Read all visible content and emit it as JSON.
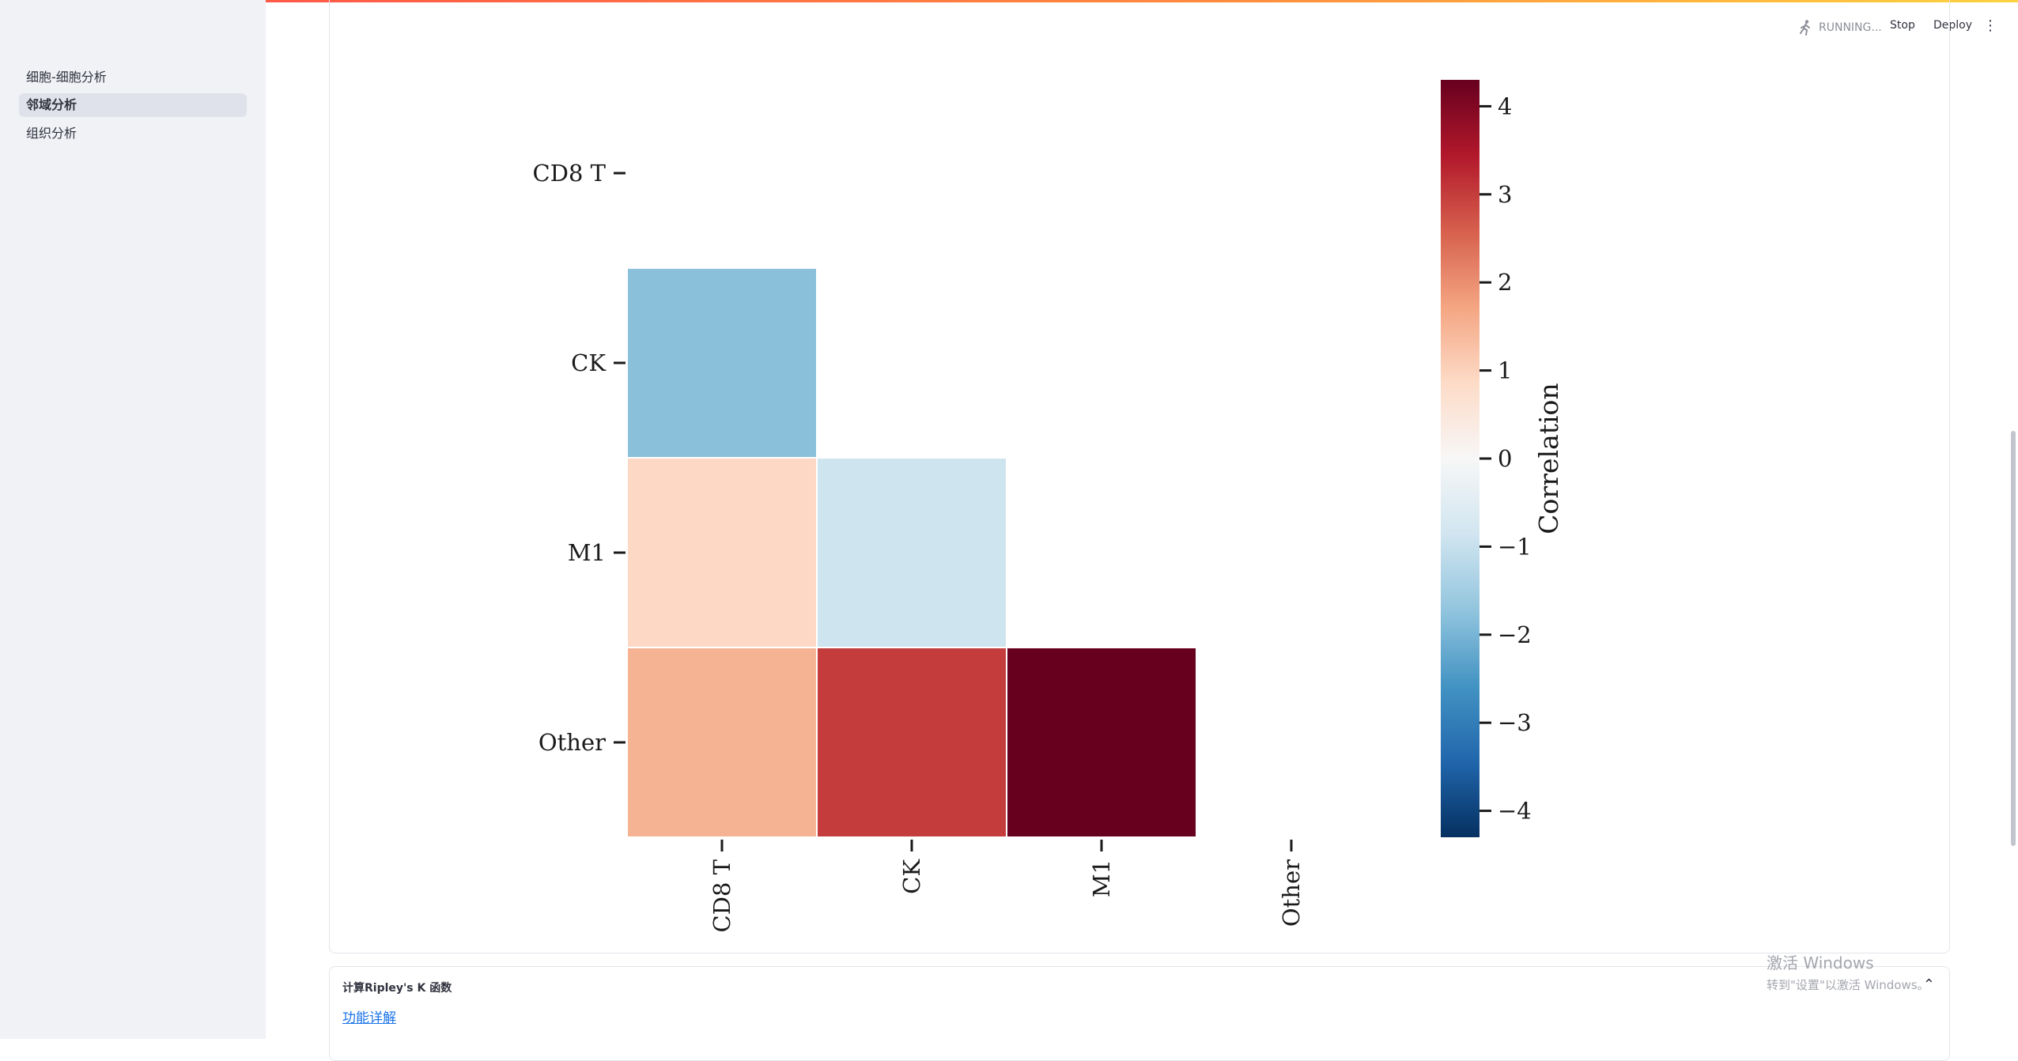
{
  "sidebar": {
    "items": [
      {
        "label": "细胞-细胞分析",
        "active": false
      },
      {
        "label": "邻域分析",
        "active": true
      },
      {
        "label": "组织分析",
        "active": false
      }
    ]
  },
  "header": {
    "status": "RUNNING...",
    "stop_label": "Stop",
    "deploy_label": "Deploy",
    "menu_icon": "kebab-menu-icon"
  },
  "expander": {
    "title": "计算Ripley's K 函数",
    "link_label": "功能详解"
  },
  "watermark": {
    "line1": "激活 Windows",
    "line2": "转到\"设置\"以激活 Windows。"
  },
  "colors": {
    "accent": "#ff4b4b",
    "link": "#1a73e8",
    "sidebar_bg": "#f0f2f6"
  },
  "chart_data": {
    "type": "heatmap",
    "title": "",
    "rows": [
      "CD8 T",
      "CK",
      "M1",
      "Other"
    ],
    "columns": [
      "CD8 T",
      "CK",
      "M1",
      "Other"
    ],
    "mask": "upper-triangle-including-diagonal",
    "values": [
      [
        null,
        null,
        null,
        null
      ],
      [
        -1.8,
        null,
        null,
        null
      ],
      [
        0.9,
        -0.9,
        null,
        null
      ],
      [
        1.5,
        3.0,
        4.3,
        null
      ]
    ],
    "colorbar": {
      "label": "Correlation",
      "vmin": -4.3,
      "vmax": 4.3,
      "ticks": [
        -4,
        -3,
        -2,
        -1,
        0,
        1,
        2,
        3,
        4
      ],
      "tick_labels": [
        "−4",
        "−3",
        "−2",
        "−1",
        "0",
        "1",
        "2",
        "3",
        "4"
      ],
      "colormap": "RdBu_r"
    }
  }
}
